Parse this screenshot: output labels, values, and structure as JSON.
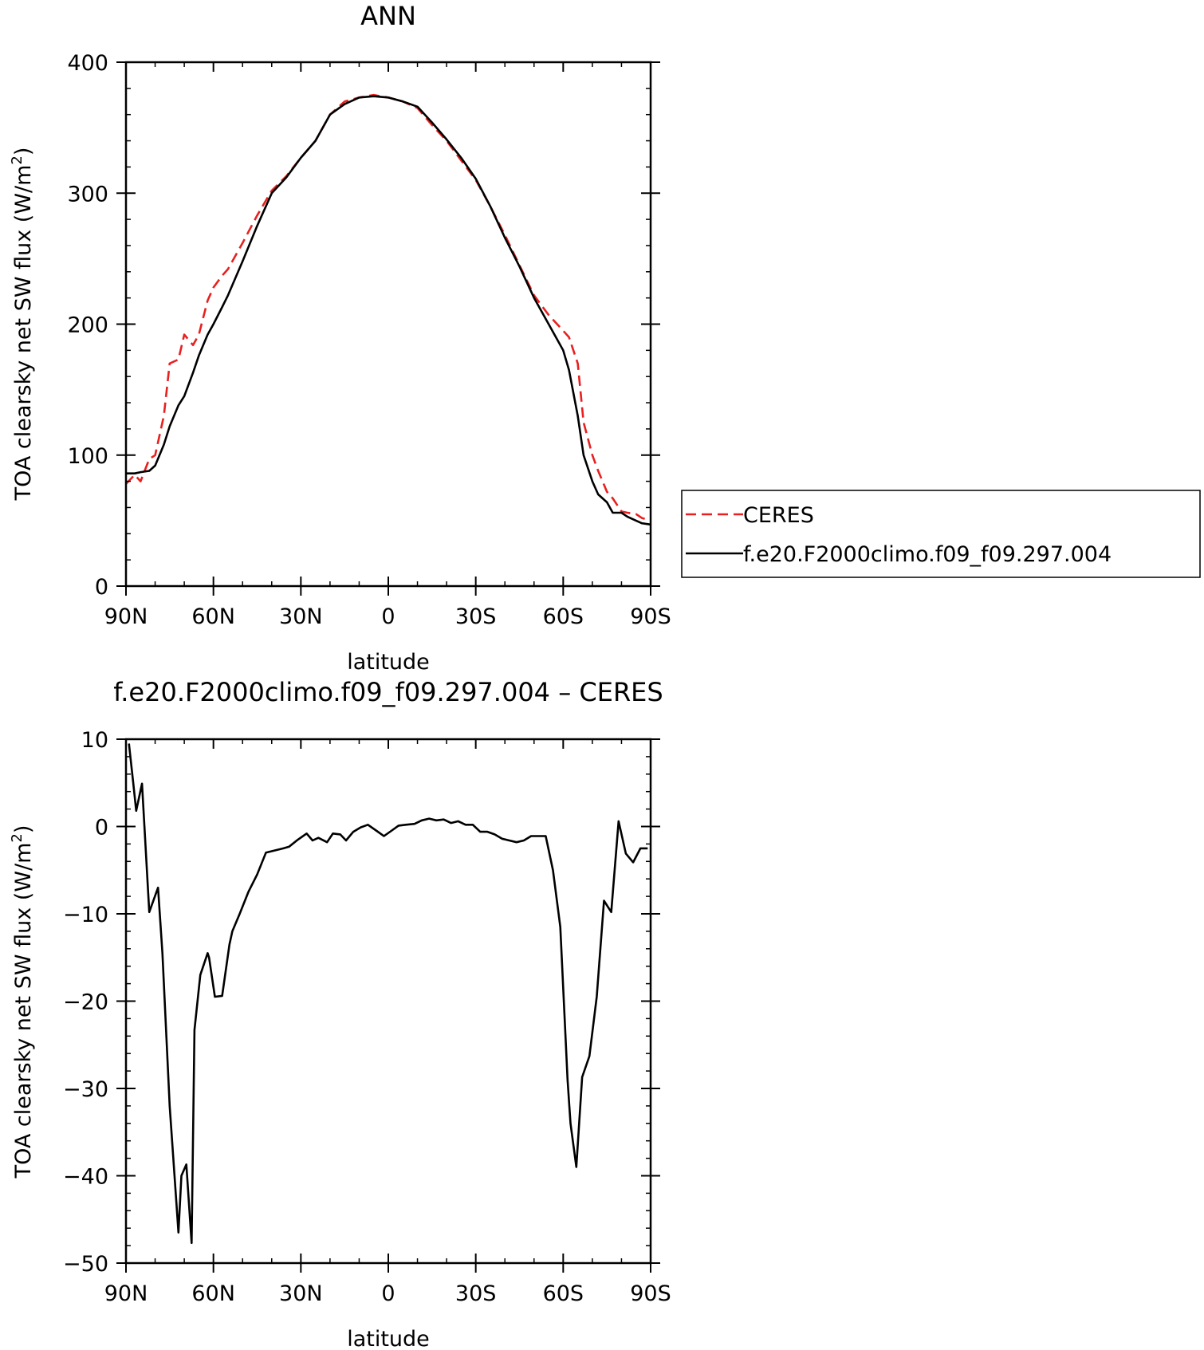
{
  "chart_data": [
    {
      "type": "line",
      "title": "ANN",
      "xlabel": "latitude",
      "ylabel": "TOA clearsky net SW flux (W/m",
      "ylabel_sup": "2",
      "ylabel_close": ")",
      "xlim": [
        90,
        -90
      ],
      "ylim": [
        0,
        400
      ],
      "xticks": [
        {
          "value": 90,
          "label": "90N"
        },
        {
          "value": 60,
          "label": "60N"
        },
        {
          "value": 30,
          "label": "30N"
        },
        {
          "value": 0,
          "label": "0"
        },
        {
          "value": -30,
          "label": "30S"
        },
        {
          "value": -60,
          "label": "60S"
        },
        {
          "value": -90,
          "label": "90S"
        }
      ],
      "yticks": [
        {
          "value": 0,
          "label": "0"
        },
        {
          "value": 100,
          "label": "100"
        },
        {
          "value": 200,
          "label": "200"
        },
        {
          "value": 300,
          "label": "300"
        },
        {
          "value": 400,
          "label": "400"
        }
      ],
      "legend": {
        "placement": "right"
      },
      "series": [
        {
          "name": "CERES",
          "color": "#e8201f",
          "dash": "dashed",
          "x": [
            90,
            87,
            85,
            82,
            80,
            77,
            75,
            72,
            70,
            67,
            65,
            62,
            60,
            57,
            55,
            50,
            45,
            40,
            35,
            30,
            25,
            20,
            15,
            10,
            5,
            0,
            -5,
            -10,
            -15,
            -20,
            -25,
            -30,
            -35,
            -40,
            -45,
            -50,
            -55,
            -60,
            -62,
            -65,
            -67,
            -70,
            -72,
            -75,
            -77,
            -80,
            -82,
            -85,
            -87,
            -90
          ],
          "y": [
            78,
            85,
            80,
            97,
            100,
            130,
            170,
            173,
            192,
            184,
            192,
            218,
            228,
            237,
            242,
            262,
            283,
            302,
            313,
            327,
            340,
            360,
            370,
            373,
            375,
            373,
            370,
            365,
            352,
            340,
            325,
            310,
            290,
            268,
            245,
            222,
            207,
            195,
            190,
            170,
            125,
            100,
            88,
            72,
            67,
            57,
            56,
            55,
            52,
            50
          ]
        },
        {
          "name": "f.e20.F2000climo.f09_f09.297.004",
          "color": "#000000",
          "dash": "solid",
          "x": [
            90,
            87,
            85,
            82,
            80,
            77,
            75,
            72,
            70,
            67,
            65,
            62,
            60,
            57,
            55,
            50,
            45,
            40,
            35,
            30,
            25,
            20,
            15,
            10,
            5,
            0,
            -5,
            -10,
            -15,
            -20,
            -25,
            -30,
            -35,
            -40,
            -45,
            -50,
            -55,
            -60,
            -62,
            -65,
            -67,
            -70,
            -72,
            -75,
            -77,
            -80,
            -82,
            -85,
            -87,
            -90
          ],
          "y": [
            86,
            86,
            87,
            88,
            92,
            108,
            122,
            138,
            145,
            163,
            176,
            192,
            200,
            213,
            222,
            248,
            275,
            300,
            312,
            327,
            340,
            360,
            368,
            373,
            374,
            373,
            370,
            366,
            354,
            341,
            327,
            311,
            290,
            266,
            244,
            220,
            200,
            180,
            165,
            130,
            100,
            80,
            70,
            64,
            56,
            56,
            53,
            50,
            48,
            47
          ]
        }
      ]
    },
    {
      "type": "line",
      "title": "f.e20.F2000climo.f09_f09.297.004 – CERES",
      "xlabel": "latitude",
      "ylabel": "TOA clearsky net SW flux (W/m",
      "ylabel_sup": "2",
      "ylabel_close": ")",
      "xlim": [
        90,
        -90
      ],
      "ylim": [
        -50,
        10
      ],
      "xticks": [
        {
          "value": 90,
          "label": "90N"
        },
        {
          "value": 60,
          "label": "60N"
        },
        {
          "value": 30,
          "label": "30N"
        },
        {
          "value": 0,
          "label": "0"
        },
        {
          "value": -30,
          "label": "30S"
        },
        {
          "value": -60,
          "label": "60S"
        },
        {
          "value": -90,
          "label": "90S"
        }
      ],
      "yticks": [
        {
          "value": -50,
          "label": "−50"
        },
        {
          "value": -40,
          "label": "−40"
        },
        {
          "value": -30,
          "label": "−30"
        },
        {
          "value": -20,
          "label": "−20"
        },
        {
          "value": -10,
          "label": "−10"
        },
        {
          "value": 0,
          "label": "0"
        },
        {
          "value": 10,
          "label": "10"
        }
      ],
      "series": [
        {
          "name": "f.e20.F2000climo.f09_f09.297.004 – CERES",
          "color": "#000000",
          "dash": "solid",
          "x": [
            89,
            87.5,
            86.5,
            84.5,
            82,
            79,
            77.5,
            75,
            72,
            71,
            69.3,
            67.5,
            66.5,
            64.5,
            62,
            61.5,
            59.5,
            57,
            54.5,
            53.5,
            51,
            48,
            45,
            42,
            38.5,
            36,
            34,
            31,
            28,
            26,
            24,
            21,
            19,
            16.5,
            14.5,
            12,
            9.5,
            7,
            4,
            1.5,
            -1,
            -3.5,
            -6,
            -9,
            -11.5,
            -14,
            -16.5,
            -19,
            -21.5,
            -24,
            -26.5,
            -29,
            -31.5,
            -34,
            -36.5,
            -39,
            -41.5,
            -44,
            -46.5,
            -49,
            -51.5,
            -54,
            -56.5,
            -59,
            -61.5,
            -62.5,
            -64.5,
            -66.5,
            -69,
            -71.5,
            -74,
            -76.5,
            -79,
            -81.5,
            -84,
            -86.5,
            -89
          ],
          "y": [
            9.5,
            5,
            1.8,
            4.9,
            -9.8,
            -7,
            -14.5,
            -32,
            -46.5,
            -40,
            -38.7,
            -47.7,
            -23.3,
            -17,
            -14.5,
            -15,
            -19.5,
            -19.4,
            -13.5,
            -12,
            -10,
            -7.5,
            -5.5,
            -3,
            -2.7,
            -2.5,
            -2.3,
            -1.5,
            -0.8,
            -1.6,
            -1.3,
            -1.8,
            -0.8,
            -0.9,
            -1.6,
            -0.6,
            -0.1,
            0.2,
            -0.5,
            -1.1,
            -0.5,
            0.1,
            0.2,
            0.3,
            0.7,
            0.9,
            0.7,
            0.8,
            0.4,
            0.6,
            0.2,
            0.2,
            -0.6,
            -0.6,
            -0.9,
            -1.4,
            -1.6,
            -1.8,
            -1.6,
            -1.1,
            -1.1,
            -1.1,
            -5,
            -11.5,
            -29,
            -34,
            -39,
            -28.7,
            -26.3,
            -19.5,
            -8.5,
            -9.8,
            0.6,
            -3.1,
            -4.1,
            -2.5,
            -2.5
          ]
        }
      ]
    }
  ]
}
